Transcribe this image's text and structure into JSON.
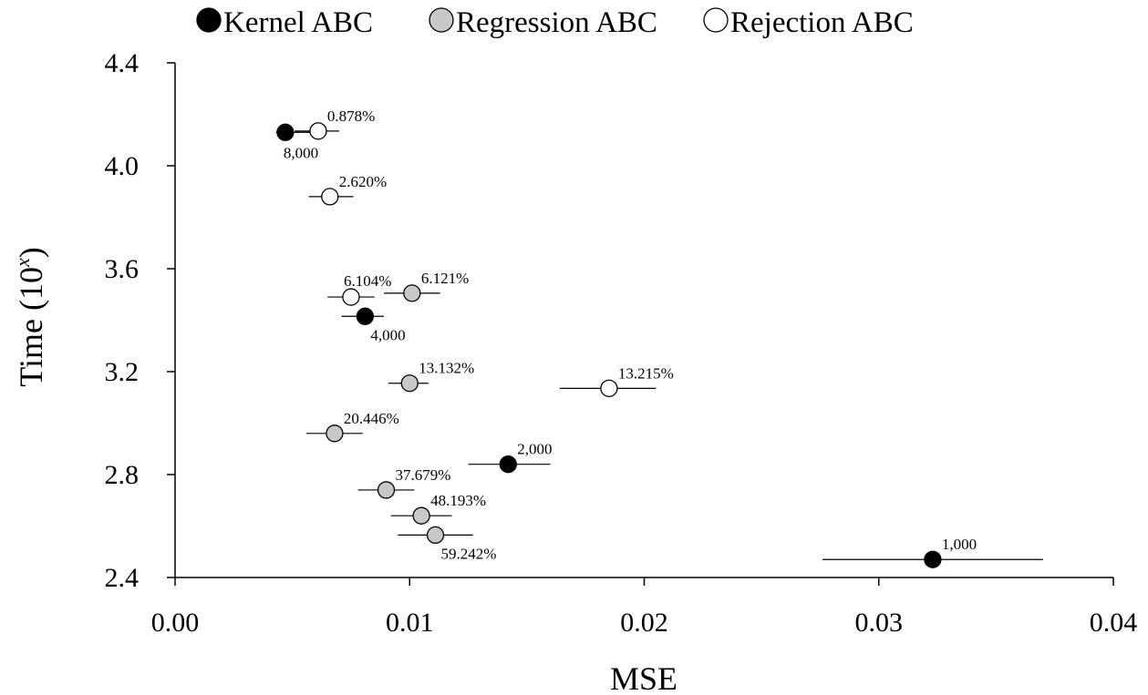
{
  "chart_data": {
    "type": "scatter",
    "xlabel": "MSE",
    "ylabel": "Time (10",
    "ylabel_sup": "x",
    "ylabel_close": ")",
    "xlim": [
      0,
      0.04
    ],
    "ylim": [
      2.4,
      4.4
    ],
    "xticks": [
      0,
      0.01,
      0.02,
      0.03,
      0.04
    ],
    "xtick_labels": [
      "0.00",
      "0.01",
      "0.02",
      "0.03",
      "0.04"
    ],
    "yticks": [
      2.4,
      2.8,
      3.2,
      3.6,
      4.0,
      4.4
    ],
    "ytick_labels": [
      "2.4",
      "2.8",
      "3.2",
      "3.6",
      "4.0",
      "4.4"
    ],
    "grid": false,
    "legend_position": "top",
    "series": [
      {
        "name": "Kernel ABC",
        "color": "#000000",
        "points": [
          {
            "x": 0.0047,
            "y": 4.13,
            "xerr_low": 0.0043,
            "xerr_high": 0.0058,
            "label": "8,000",
            "label_pos": "below"
          },
          {
            "x": 0.0081,
            "y": 3.415,
            "xerr_low": 0.0071,
            "xerr_high": 0.0089,
            "label": "4,000",
            "label_pos": "below-right"
          },
          {
            "x": 0.0142,
            "y": 2.84,
            "xerr_low": 0.0125,
            "xerr_high": 0.016,
            "label": "2,000",
            "label_pos": "above-right"
          },
          {
            "x": 0.0323,
            "y": 2.47,
            "xerr_low": 0.0276,
            "xerr_high": 0.037,
            "label": "1,000",
            "label_pos": "above-right"
          }
        ]
      },
      {
        "name": "Regression ABC",
        "color": "#c8c8c8",
        "points": [
          {
            "x": 0.0101,
            "y": 3.505,
            "xerr_low": 0.0089,
            "xerr_high": 0.0113,
            "label": "6.121%",
            "label_pos": "above-right"
          },
          {
            "x": 0.01,
            "y": 3.155,
            "xerr_low": 0.0091,
            "xerr_high": 0.0108,
            "label": "13.132%",
            "label_pos": "above-right"
          },
          {
            "x": 0.0068,
            "y": 2.96,
            "xerr_low": 0.0056,
            "xerr_high": 0.008,
            "label": "20.446%",
            "label_pos": "above-right"
          },
          {
            "x": 0.009,
            "y": 2.74,
            "xerr_low": 0.0078,
            "xerr_high": 0.0102,
            "label": "37.679%",
            "label_pos": "above-right"
          },
          {
            "x": 0.0105,
            "y": 2.64,
            "xerr_low": 0.0092,
            "xerr_high": 0.0118,
            "label": "48.193%",
            "label_pos": "above-right"
          },
          {
            "x": 0.0111,
            "y": 2.565,
            "xerr_low": 0.0095,
            "xerr_high": 0.0127,
            "label": "59.242%",
            "label_pos": "below-right"
          }
        ]
      },
      {
        "name": "Rejection ABC",
        "color": "#ffffff",
        "points": [
          {
            "x": 0.0061,
            "y": 4.135,
            "xerr_low": 0.0051,
            "xerr_high": 0.007,
            "label": "0.878%",
            "label_pos": "above-right"
          },
          {
            "x": 0.0066,
            "y": 3.88,
            "xerr_low": 0.0057,
            "xerr_high": 0.0076,
            "label": "2.620%",
            "label_pos": "above-right"
          },
          {
            "x": 0.0075,
            "y": 3.49,
            "xerr_low": 0.0065,
            "xerr_high": 0.0085,
            "label": "6.104%",
            "label_pos": "above"
          },
          {
            "x": 0.0185,
            "y": 3.135,
            "xerr_low": 0.0164,
            "xerr_high": 0.0205,
            "label": "13.215%",
            "label_pos": "above-right"
          }
        ]
      }
    ]
  }
}
